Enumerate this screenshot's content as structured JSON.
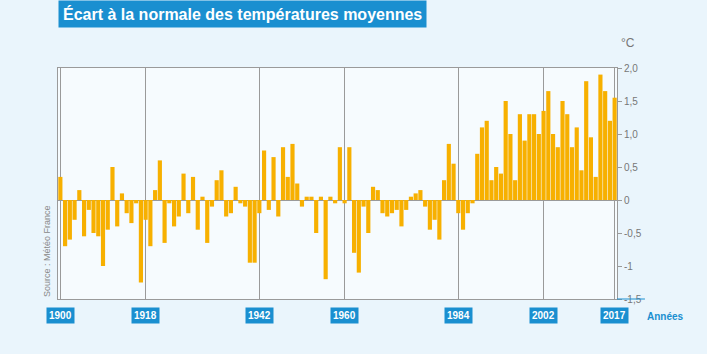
{
  "chart_data": {
    "type": "bar",
    "title": "Écart à la normale des températures moyennes",
    "x_label": "Années",
    "y_label": "°C",
    "source": "Source : Météo France",
    "x": [
      1900,
      1901,
      1902,
      1903,
      1904,
      1905,
      1906,
      1907,
      1908,
      1909,
      1910,
      1911,
      1912,
      1913,
      1914,
      1915,
      1916,
      1917,
      1918,
      1919,
      1920,
      1921,
      1922,
      1923,
      1924,
      1925,
      1926,
      1927,
      1928,
      1929,
      1930,
      1931,
      1932,
      1933,
      1934,
      1935,
      1936,
      1937,
      1938,
      1939,
      1940,
      1941,
      1942,
      1943,
      1944,
      1945,
      1946,
      1947,
      1948,
      1949,
      1950,
      1951,
      1952,
      1953,
      1954,
      1955,
      1956,
      1957,
      1958,
      1959,
      1960,
      1961,
      1962,
      1963,
      1964,
      1965,
      1966,
      1967,
      1968,
      1969,
      1970,
      1971,
      1972,
      1973,
      1974,
      1975,
      1976,
      1977,
      1978,
      1979,
      1980,
      1981,
      1982,
      1983,
      1984,
      1985,
      1986,
      1987,
      1988,
      1989,
      1990,
      1991,
      1992,
      1993,
      1994,
      1995,
      1996,
      1997,
      1998,
      1999,
      2000,
      2001,
      2002,
      2003,
      2004,
      2005,
      2006,
      2007,
      2008,
      2009,
      2010,
      2011,
      2012,
      2013,
      2014,
      2015,
      2016,
      2017
    ],
    "values": [
      0.35,
      -0.7,
      -0.6,
      -0.3,
      0.15,
      -0.55,
      -0.15,
      -0.5,
      -0.55,
      -1.0,
      -0.45,
      0.5,
      -0.4,
      0.1,
      -0.2,
      -0.35,
      -0.05,
      -1.25,
      -0.3,
      -0.7,
      0.15,
      0.6,
      -0.65,
      -0.05,
      -0.4,
      -0.25,
      0.4,
      -0.2,
      0.35,
      -0.45,
      0.05,
      -0.65,
      -0.1,
      0.3,
      0.45,
      -0.25,
      -0.2,
      0.2,
      -0.05,
      -0.1,
      -0.95,
      -0.95,
      -0.2,
      0.75,
      -0.15,
      0.65,
      -0.25,
      0.8,
      0.35,
      0.85,
      0.25,
      -0.1,
      0.05,
      0.05,
      -0.5,
      0.05,
      -1.2,
      0.05,
      -0.05,
      0.8,
      -0.05,
      0.8,
      -0.8,
      -1.1,
      -0.1,
      -0.5,
      0.2,
      0.15,
      -0.2,
      -0.25,
      -0.2,
      -0.15,
      -0.4,
      -0.15,
      0.05,
      0.1,
      0.15,
      -0.1,
      -0.45,
      -0.3,
      -0.6,
      0.3,
      0.85,
      0.55,
      -0.2,
      -0.45,
      -0.2,
      -0.05,
      0.7,
      1.1,
      1.2,
      0.3,
      0.5,
      0.4,
      1.5,
      1.0,
      0.3,
      1.3,
      0.9,
      1.3,
      1.3,
      1.0,
      1.35,
      1.65,
      1.0,
      0.8,
      1.5,
      1.3,
      0.8,
      1.1,
      0.45,
      1.8,
      0.95,
      0.35,
      1.9,
      1.65,
      1.2,
      1.55
    ],
    "color": "#f7b000",
    "xlim": [
      1899.5,
      2017.5
    ],
    "xticks": [
      1900,
      1918,
      1942,
      1960,
      1984,
      2002,
      2017
    ],
    "ylim": [
      -1.5,
      2.0
    ],
    "yticks": [
      {
        "value": -1.5,
        "label": "-1,5"
      },
      -1,
      {
        "value": -0.5,
        "label": "-0,5"
      },
      0,
      {
        "value": 0.5,
        "label": "0,5"
      },
      {
        "value": 1.0,
        "label": "1,0"
      },
      {
        "value": 1.5,
        "label": "1,5"
      },
      {
        "value": 2.0,
        "label": "2,0"
      }
    ],
    "grid": true
  }
}
